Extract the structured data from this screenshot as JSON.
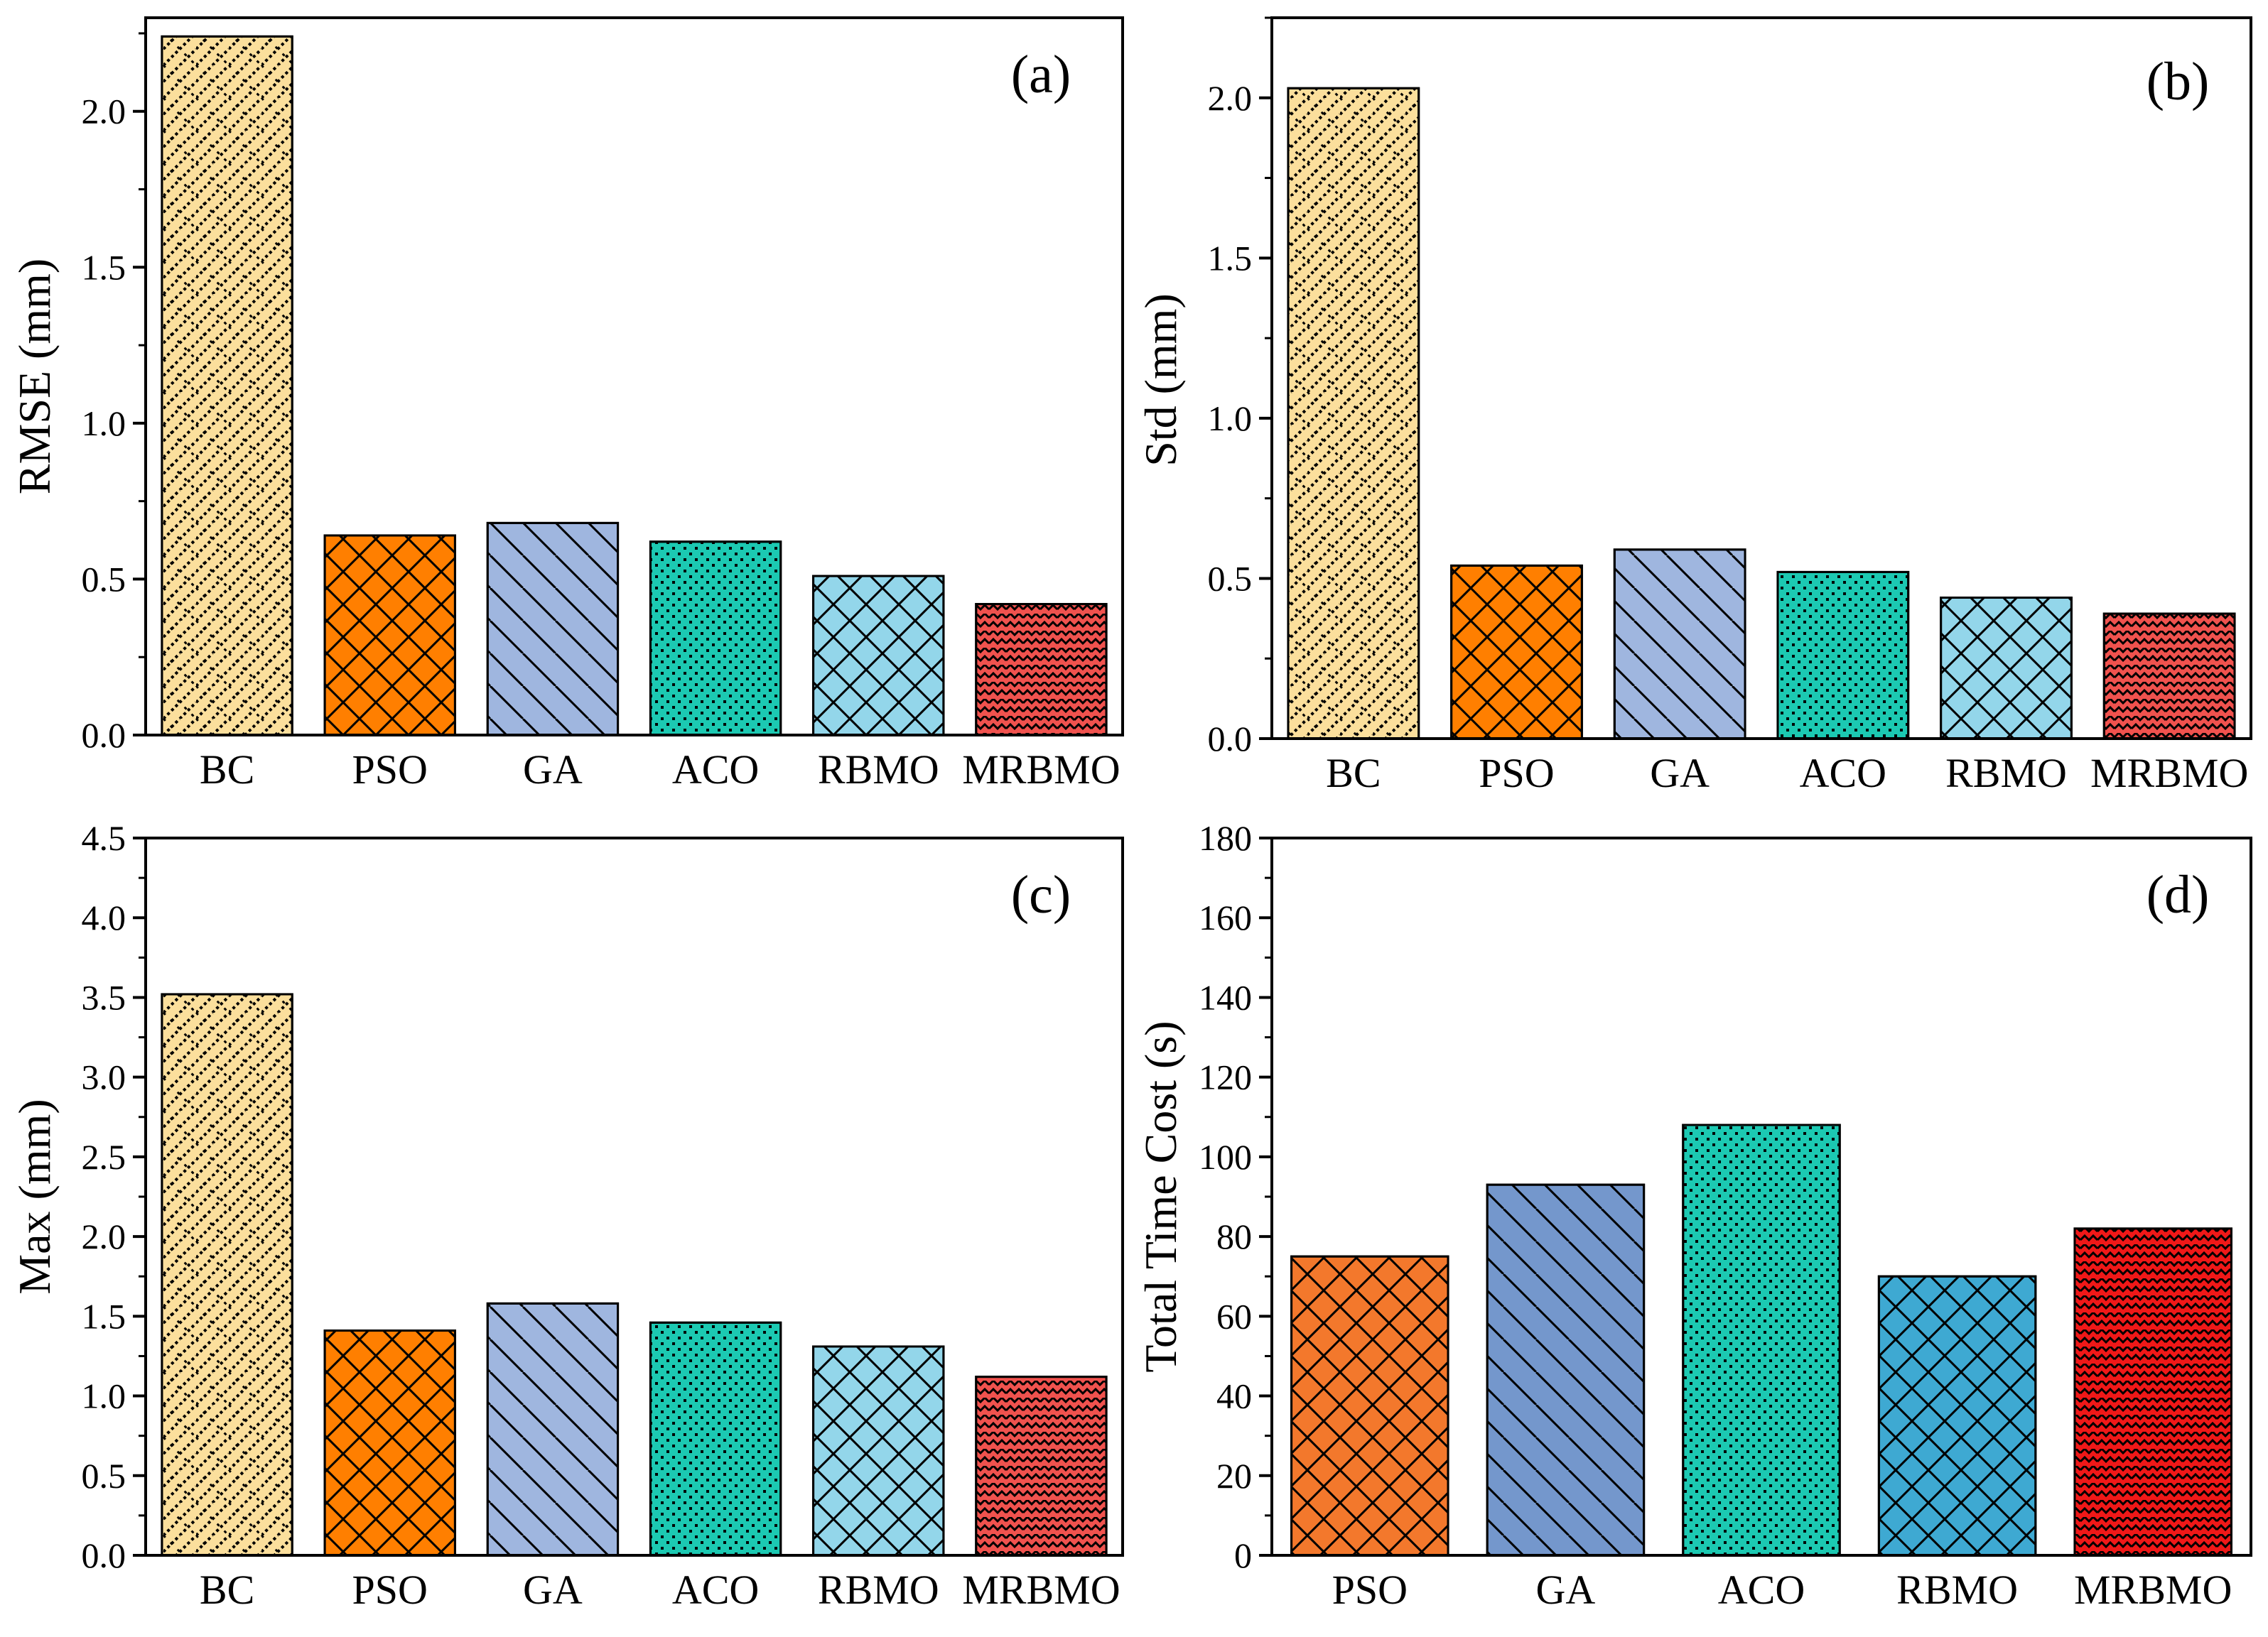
{
  "chart_data": [
    {
      "type": "bar",
      "panel_label": "(a)",
      "ylabel": "RMSE (mm)",
      "xlabel": "",
      "categories": [
        "BC",
        "PSO",
        "GA",
        "ACO",
        "RBMO",
        "MRBMO"
      ],
      "values": [
        2.24,
        0.64,
        0.68,
        0.62,
        0.51,
        0.42
      ],
      "ylim": [
        0,
        2.3
      ],
      "yticks": [
        0.0,
        0.5,
        1.0,
        1.5,
        2.0
      ],
      "ytick_labels": [
        "0.0",
        "0.5",
        "1.0",
        "1.5",
        "2.0"
      ],
      "grid": false
    },
    {
      "type": "bar",
      "panel_label": "(b)",
      "ylabel": "Std (mm)",
      "xlabel": "",
      "categories": [
        "BC",
        "PSO",
        "GA",
        "ACO",
        "RBMO",
        "MRBMO"
      ],
      "values": [
        2.03,
        0.54,
        0.59,
        0.52,
        0.44,
        0.39
      ],
      "ylim": [
        0,
        2.25
      ],
      "yticks": [
        0.0,
        0.5,
        1.0,
        1.5,
        2.0
      ],
      "ytick_labels": [
        "0.0",
        "0.5",
        "1.0",
        "1.5",
        "2.0"
      ],
      "grid": false
    },
    {
      "type": "bar",
      "panel_label": "(c)",
      "ylabel": "Max (mm)",
      "xlabel": "",
      "categories": [
        "BC",
        "PSO",
        "GA",
        "ACO",
        "RBMO",
        "MRBMO"
      ],
      "values": [
        3.52,
        1.41,
        1.58,
        1.46,
        1.31,
        1.12
      ],
      "ylim": [
        0,
        4.5
      ],
      "yticks": [
        0.0,
        0.5,
        1.0,
        1.5,
        2.0,
        2.5,
        3.0,
        3.5,
        4.0,
        4.5
      ],
      "ytick_labels": [
        "0.0",
        "0.5",
        "1.0",
        "1.5",
        "2.0",
        "2.5",
        "3.0",
        "3.5",
        "4.0",
        "4.5"
      ],
      "grid": false
    },
    {
      "type": "bar",
      "panel_label": "(d)",
      "ylabel": "Total Time Cost (s)",
      "xlabel": "",
      "categories": [
        "PSO",
        "GA",
        "ACO",
        "RBMO",
        "MRBMO"
      ],
      "values": [
        75,
        93,
        108,
        70,
        82
      ],
      "ylim": [
        0,
        180
      ],
      "yticks": [
        0,
        20,
        40,
        60,
        80,
        100,
        120,
        140,
        160,
        180
      ],
      "ytick_labels": [
        "0",
        "20",
        "40",
        "60",
        "80",
        "100",
        "120",
        "140",
        "160",
        "180"
      ],
      "grid": false
    }
  ],
  "styles": {
    "BC": {
      "color": "#FBDF9C",
      "pattern": "stair-diag-icon"
    },
    "PSO": {
      "color": "#FF7F00",
      "pattern": "crosshatch-icon"
    },
    "GA": {
      "color": "#9FB6DF",
      "pattern": "back-diag-icon"
    },
    "ACO": {
      "color": "#1CC9B2",
      "pattern": "dots-icon"
    },
    "RBMO": {
      "color": "#93D6EA",
      "pattern": "crosshatch-icon"
    },
    "MRBMO": {
      "color": "#F0524E",
      "pattern": "zigzag-icon"
    }
  },
  "styles_d": {
    "PSO": {
      "color": "#F3782C",
      "pattern": "crosshatch-icon"
    },
    "GA": {
      "color": "#7497CC",
      "pattern": "back-diag-icon"
    },
    "ACO": {
      "color": "#1CC9B2",
      "pattern": "dots-icon"
    },
    "RBMO": {
      "color": "#3EA9D2",
      "pattern": "crosshatch-icon"
    },
    "MRBMO": {
      "color": "#F01818",
      "pattern": "zigzag-icon"
    }
  }
}
